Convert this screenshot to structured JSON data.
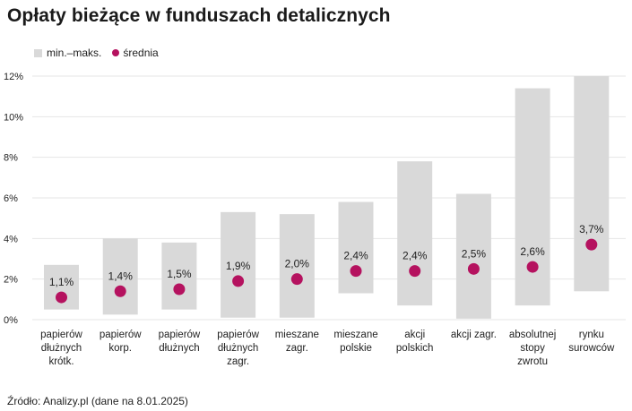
{
  "title": "Opłaty bieżące w funduszach detalicznych",
  "legend": {
    "range_label": "min.–maks.",
    "mean_label": "średnia"
  },
  "source": "Źródło: Analizy.pl (dane na 8.01.2025)",
  "colors": {
    "range": "#d9d9d9",
    "mean": "#b5125f",
    "grid": "#e6e6e6"
  },
  "chart_data": {
    "type": "range-dot",
    "title": "Opłaty bieżące w funduszach detalicznych",
    "categories": [
      [
        "papierów",
        "dłużnych",
        "krótk."
      ],
      [
        "papierów",
        "korp."
      ],
      [
        "papierów",
        "dłużnych"
      ],
      [
        "papierów",
        "dłużnych",
        "zagr."
      ],
      [
        "mieszane",
        "zagr."
      ],
      [
        "mieszane",
        "polskie"
      ],
      [
        "akcji",
        "polskich"
      ],
      [
        "akcji zagr."
      ],
      [
        "absolutnej",
        "stopy",
        "zwrotu"
      ],
      [
        "rynku",
        "surowców"
      ]
    ],
    "series": [
      {
        "name": "min.–maks.",
        "min": [
          0.5,
          0.25,
          0.5,
          0.1,
          0.1,
          1.3,
          0.7,
          0.05,
          0.7,
          1.4
        ],
        "max": [
          2.7,
          4.0,
          3.8,
          5.3,
          5.2,
          5.8,
          7.8,
          6.2,
          11.4,
          12.0
        ]
      },
      {
        "name": "średnia",
        "values": [
          1.1,
          1.4,
          1.5,
          1.9,
          2.0,
          2.4,
          2.4,
          2.5,
          2.6,
          3.7
        ],
        "labels": [
          "1,1%",
          "1,4%",
          "1,5%",
          "1,9%",
          "2,0%",
          "2,4%",
          "2,4%",
          "2,5%",
          "2,6%",
          "3,7%"
        ]
      }
    ],
    "yticks": [
      0,
      2,
      4,
      6,
      8,
      10,
      12
    ],
    "ytick_labels": [
      "0%",
      "2%",
      "4%",
      "6%",
      "8%",
      "10%",
      "12%"
    ],
    "ylim": [
      0,
      12
    ],
    "grid": true,
    "legend_position": "top-left"
  }
}
